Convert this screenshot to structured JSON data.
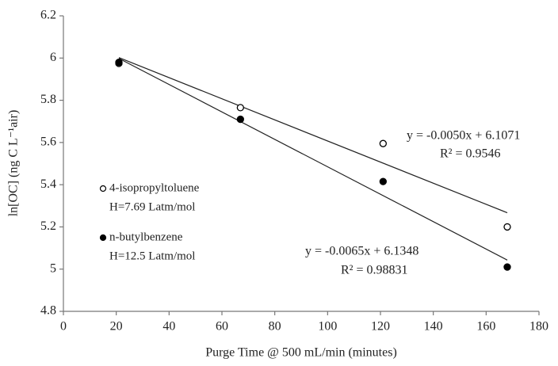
{
  "chart_data": {
    "type": "scatter",
    "x_label": "Purge Time @ 500 mL/min (minutes)",
    "y_label": "ln[OC] (ng C L⁻¹air)",
    "xlim": [
      0,
      180
    ],
    "xticks": [
      0,
      20,
      40,
      60,
      80,
      100,
      120,
      140,
      160,
      180
    ],
    "ylim": [
      4.8,
      6.2
    ],
    "yticks": [
      4.8,
      5,
      5.2,
      5.4,
      5.6,
      5.8,
      6,
      6.2
    ],
    "grid": false,
    "series": [
      {
        "name": "4-isopropyltoluene",
        "note": "H=7.69 Latm/mol",
        "color": "#000000",
        "marker": "open",
        "x": [
          21,
          67,
          121,
          168
        ],
        "values": [
          5.975,
          5.765,
          5.595,
          5.2
        ],
        "trendline": {
          "slope": -0.005,
          "intercept": 6.1071
        },
        "equation": "y = -0.0050x + 6.1071",
        "r2": "R² = 0.9546"
      },
      {
        "name": "n-butylbenzene",
        "note": "H=12.5 Latm/mol",
        "color": "#000000",
        "marker": "filled",
        "x": [
          21,
          67,
          121,
          168
        ],
        "values": [
          5.98,
          5.71,
          5.415,
          5.01
        ],
        "trendline": {
          "slope": -0.0065,
          "intercept": 6.1348
        },
        "equation": "y = -0.0065x + 6.1348",
        "r2": "R² = 0.98831"
      }
    ]
  }
}
